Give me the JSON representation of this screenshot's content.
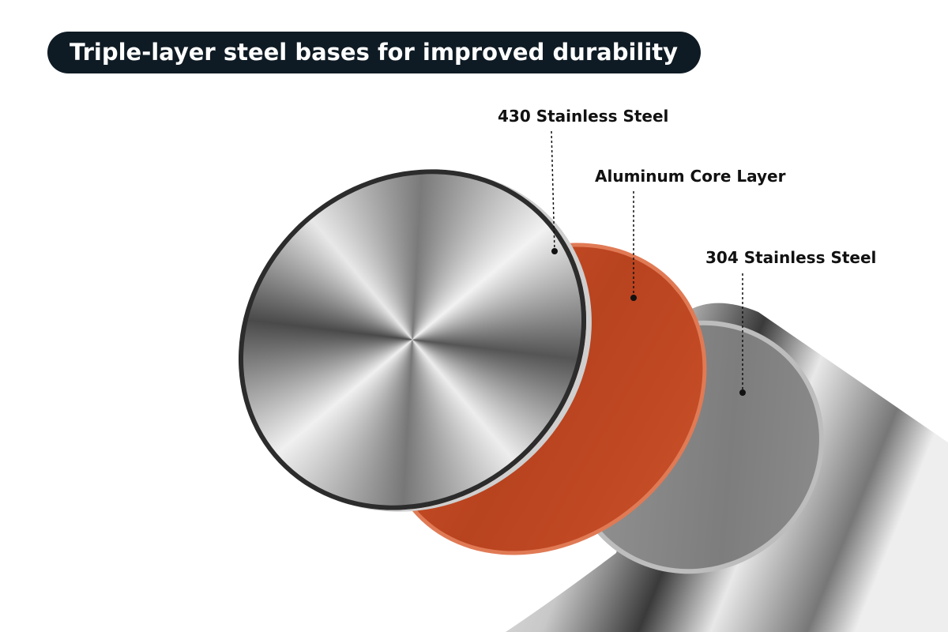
{
  "header": {
    "title": "Triple-layer steel bases for improved durability"
  },
  "labels": [
    "430 Stainless Steel",
    "Aluminum Core Layer",
    "304 Stainless Steel"
  ]
}
